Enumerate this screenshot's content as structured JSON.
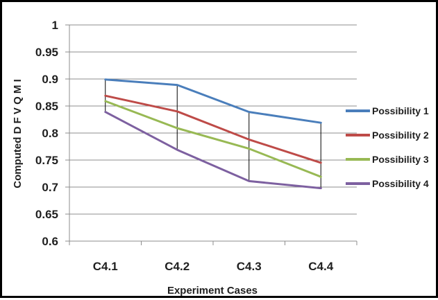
{
  "chart_data": {
    "type": "line",
    "title": "",
    "xlabel": "Experiment Cases",
    "ylabel": "Computed  D F V Q M I",
    "categories": [
      "C4.1",
      "C4.2",
      "C4.3",
      "C4.4"
    ],
    "ylim": [
      0.6,
      1
    ],
    "yticks": [
      "0.6",
      "0.65",
      "0.7",
      "0.75",
      "0.8",
      "0.85",
      "0.9",
      "0.95",
      "1"
    ],
    "grid": true,
    "drop_lines": true,
    "legend_position": "right",
    "series": [
      {
        "name": "Possibility 1",
        "color": "#4a7ebb",
        "values": [
          0.899,
          0.889,
          0.839,
          0.819
        ]
      },
      {
        "name": "Possibility 2",
        "color": "#be4b48",
        "values": [
          0.869,
          0.84,
          0.788,
          0.745
        ]
      },
      {
        "name": "Possibility 3",
        "color": "#98b954",
        "values": [
          0.859,
          0.809,
          0.771,
          0.719
        ]
      },
      {
        "name": "Possibility 4",
        "color": "#7d60a0",
        "values": [
          0.839,
          0.769,
          0.711,
          0.698
        ]
      }
    ]
  }
}
